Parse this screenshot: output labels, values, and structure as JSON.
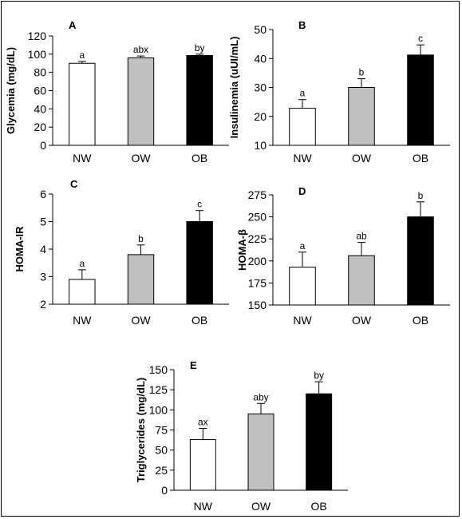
{
  "chart_data": [
    {
      "type": "bar",
      "panel": "A",
      "ylabel": "Glycemia (mg/dL)",
      "categories": [
        "NW",
        "OW",
        "OB"
      ],
      "values": [
        90,
        96,
        98.5
      ],
      "errors": [
        2,
        2,
        1.5
      ],
      "letters": [
        "a",
        "abx",
        "by"
      ],
      "ylim": [
        0,
        120
      ],
      "yticks": [
        0,
        20,
        40,
        60,
        80,
        100,
        120
      ],
      "fills": [
        "#ffffff",
        "#c0c0c0",
        "#000000"
      ]
    },
    {
      "type": "bar",
      "panel": "B",
      "ylabel": "Insulinemia (uUI/mL)",
      "categories": [
        "NW",
        "OW",
        "OB"
      ],
      "values": [
        22.8,
        30,
        41.2
      ],
      "errors": [
        3,
        3,
        3.5
      ],
      "letters": [
        "a",
        "b",
        "c"
      ],
      "ylim": [
        10,
        50
      ],
      "yticks": [
        10,
        20,
        30,
        40,
        50
      ],
      "fills": [
        "#ffffff",
        "#c0c0c0",
        "#000000"
      ]
    },
    {
      "type": "bar",
      "panel": "C",
      "ylabel": "HOMA-IR",
      "categories": [
        "NW",
        "OW",
        "OB"
      ],
      "values": [
        2.9,
        3.8,
        5.0
      ],
      "errors": [
        0.35,
        0.35,
        0.4
      ],
      "letters": [
        "a",
        "b",
        "c"
      ],
      "ylim": [
        2,
        6
      ],
      "yticks": [
        2,
        3,
        4,
        5,
        6
      ],
      "fills": [
        "#ffffff",
        "#c0c0c0",
        "#000000"
      ]
    },
    {
      "type": "bar",
      "panel": "D",
      "ylabel": "HOMA-β",
      "categories": [
        "NW",
        "OW",
        "OB"
      ],
      "values": [
        193,
        206,
        250
      ],
      "errors": [
        17,
        15,
        17
      ],
      "letters": [
        "a",
        "ab",
        "b"
      ],
      "ylim": [
        150,
        275
      ],
      "yticks": [
        150,
        175,
        200,
        225,
        250,
        275
      ],
      "fills": [
        "#ffffff",
        "#c0c0c0",
        "#000000"
      ]
    },
    {
      "type": "bar",
      "panel": "E",
      "ylabel": "Triglycerides (mg/dL)",
      "categories": [
        "NW",
        "OW",
        "OB"
      ],
      "values": [
        63,
        95,
        120
      ],
      "errors": [
        14,
        13,
        15
      ],
      "letters": [
        "ax",
        "aby",
        "by"
      ],
      "ylim": [
        0,
        150
      ],
      "yticks": [
        0,
        25,
        50,
        75,
        100,
        125,
        150
      ],
      "fills": [
        "#ffffff",
        "#c0c0c0",
        "#000000"
      ]
    }
  ]
}
